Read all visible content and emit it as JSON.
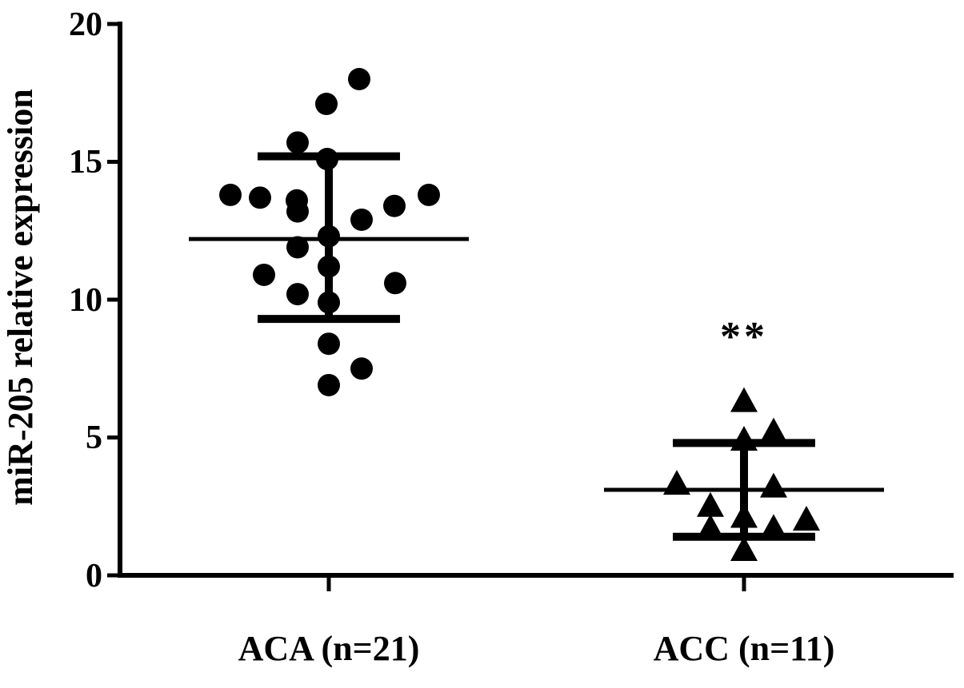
{
  "figure": {
    "background": "#ffffff",
    "ink_color": "#000000"
  },
  "chart_data": {
    "type": "scatter",
    "title": "",
    "xlabel": "",
    "ylabel": "miR-205 relative expression",
    "ylim": [
      0,
      20
    ],
    "yticks": [
      0,
      5,
      10,
      15,
      20
    ],
    "legend": "none",
    "grid": false,
    "groups": [
      {
        "label": "ACA (n=21)",
        "n": 21,
        "marker": "circle",
        "mean": 12.2,
        "error_low": 9.3,
        "error_high": 15.2,
        "values": [
          18.0,
          17.1,
          15.7,
          15.1,
          13.8,
          13.8,
          13.7,
          13.6,
          13.4,
          13.2,
          12.9,
          12.3,
          11.9,
          11.2,
          10.9,
          10.6,
          10.2,
          9.9,
          8.4,
          7.5,
          6.9
        ],
        "x_offsets": [
          38,
          -3,
          -39,
          -2,
          -123,
          125,
          -86,
          -40,
          82,
          -39,
          41,
          0,
          -39,
          0,
          -81,
          83,
          -39,
          0,
          0,
          41,
          0
        ],
        "annotation": ""
      },
      {
        "label": "ACC (n=11)",
        "n": 11,
        "marker": "triangle",
        "mean": 3.1,
        "error_low": 1.4,
        "error_high": 4.8,
        "values": [
          6.3,
          5.2,
          4.9,
          3.3,
          3.2,
          2.5,
          2.1,
          2.0,
          1.7,
          1.7,
          0.9
        ],
        "x_offsets": [
          0,
          37,
          0,
          -84,
          37,
          -42,
          0,
          78,
          -42,
          37,
          0
        ],
        "annotation": "**"
      }
    ]
  }
}
